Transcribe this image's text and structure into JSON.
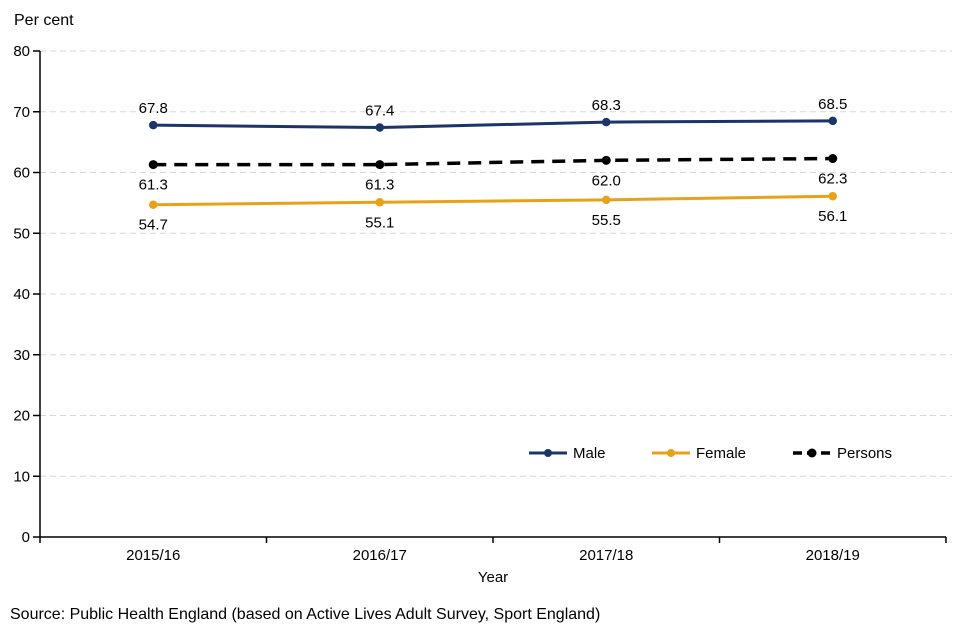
{
  "source": {
    "text": "Source: Public Health England (based on Active Lives Adult Survey, Sport England)"
  },
  "colors": {
    "male": "#1C3569",
    "female": "#E8A21A",
    "persons": "#000000",
    "gridline": "#D8D8D8",
    "axis": "#000000",
    "text": "#000000"
  },
  "chart_data": {
    "type": "line",
    "title": "Per cent",
    "xlabel": "Year",
    "ylabel": "Per cent",
    "categories": [
      "2015/16",
      "2016/17",
      "2017/18",
      "2018/19"
    ],
    "series": [
      {
        "name": "Male",
        "values": [
          67.8,
          67.4,
          68.3,
          68.5
        ],
        "color": "#1C3569",
        "dashed": false,
        "label_position": "above"
      },
      {
        "name": "Female",
        "values": [
          54.7,
          55.1,
          55.5,
          56.1
        ],
        "color": "#E8A21A",
        "dashed": false,
        "label_position": "below"
      },
      {
        "name": "Persons",
        "values": [
          61.3,
          61.3,
          62.0,
          62.3
        ],
        "color": "#000000",
        "dashed": true,
        "label_position": "below"
      }
    ],
    "ylim": [
      0,
      80
    ],
    "yticks": [
      0,
      10,
      20,
      30,
      40,
      50,
      60,
      70,
      80
    ],
    "grid": "horizontal-dashed",
    "legend_position": "inside-bottom-right",
    "value_labels_decimals": 1
  }
}
